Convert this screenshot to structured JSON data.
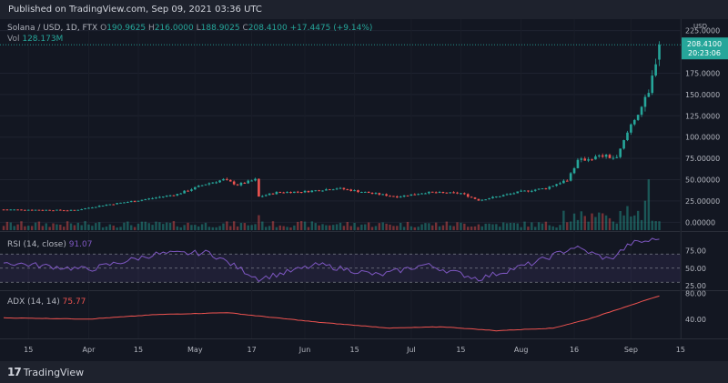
{
  "header": {
    "published": "Published on TradingView.com, Sep 09, 2021 03:36 UTC"
  },
  "footer": {
    "brand": "TradingView",
    "mark": "17"
  },
  "legend": {
    "symbol": "Solana / USD, 1D, FTX",
    "o_label": "O",
    "o": "190.9625",
    "h_label": "H",
    "h": "216.0000",
    "l_label": "L",
    "l": "188.9025",
    "c_label": "C",
    "c": "208.4100",
    "change": "+17.4475 (+9.14%)",
    "vol_label": "Vol",
    "vol": "128.173M"
  },
  "price_axis": {
    "currency": "USD",
    "ticks": [
      "225.0000",
      "175.0000",
      "150.0000",
      "125.0000",
      "100.0000",
      "75.00000",
      "50.00000",
      "25.00000",
      "0.00000"
    ],
    "last_price": "208.4100",
    "countdown": "20:23:06"
  },
  "rsi_pane": {
    "label": "RSI (14, close)",
    "value": "91.07",
    "ticks": [
      "75.00",
      "50.00",
      "25.00"
    ]
  },
  "adx_pane": {
    "label": "ADX (14, 14)",
    "value": "75.77",
    "ticks": [
      "80.00",
      "40.00"
    ]
  },
  "time_axis": [
    "15",
    "Apr",
    "15",
    "May",
    "17",
    "Jun",
    "15",
    "Jul",
    "15",
    "Aug",
    "16",
    "Sep",
    "15"
  ],
  "colors": {
    "up": "#26a69a",
    "down": "#ef5350",
    "rsi": "#7e57c2",
    "adx": "#ef5350",
    "bg": "#131722"
  },
  "chart_data": [
    {
      "type": "candlestick",
      "title": "Solana / USD, 1D, FTX",
      "x_range": [
        "2021-03-08",
        "2021-09-14"
      ],
      "ylim": [
        -5,
        230
      ],
      "anchors": [
        [
          "2021-03-08",
          15
        ],
        [
          "2021-03-28",
          14
        ],
        [
          "2021-04-05",
          20
        ],
        [
          "2021-04-14",
          25
        ],
        [
          "2021-04-26",
          33
        ],
        [
          "2021-05-04",
          45
        ],
        [
          "2021-05-09",
          50
        ],
        [
          "2021-05-13",
          44
        ],
        [
          "2021-05-18",
          50
        ],
        [
          "2021-05-19",
          30
        ],
        [
          "2021-05-24",
          35
        ],
        [
          "2021-06-01",
          36
        ],
        [
          "2021-06-10",
          40
        ],
        [
          "2021-06-20",
          34
        ],
        [
          "2021-06-27",
          30
        ],
        [
          "2021-07-05",
          35
        ],
        [
          "2021-07-15",
          34
        ],
        [
          "2021-07-20",
          26
        ],
        [
          "2021-07-25",
          30
        ],
        [
          "2021-08-01",
          36
        ],
        [
          "2021-08-08",
          40
        ],
        [
          "2021-08-14",
          50
        ],
        [
          "2021-08-17",
          72
        ],
        [
          "2021-08-24",
          78
        ],
        [
          "2021-08-28",
          75
        ],
        [
          "2021-09-01",
          115
        ],
        [
          "2021-09-06",
          150
        ],
        [
          "2021-09-08",
          190
        ],
        [
          "2021-09-09",
          208.41
        ]
      ],
      "volume_spikes": [
        [
          "2021-05-19",
          0.28
        ],
        [
          "2021-09-06",
          0.95
        ],
        [
          "2021-09-05",
          0.55
        ],
        [
          "2021-08-31",
          0.45
        ]
      ]
    },
    {
      "type": "line",
      "name": "RSI (14, close)",
      "ylim": [
        20,
        100
      ],
      "anchors": [
        [
          "2021-03-08",
          58
        ],
        [
          "2021-04-01",
          48
        ],
        [
          "2021-04-20",
          70
        ],
        [
          "2021-05-05",
          72
        ],
        [
          "2021-05-19",
          35
        ],
        [
          "2021-06-05",
          55
        ],
        [
          "2021-06-22",
          40
        ],
        [
          "2021-07-05",
          55
        ],
        [
          "2021-07-20",
          35
        ],
        [
          "2021-08-05",
          58
        ],
        [
          "2021-08-16",
          80
        ],
        [
          "2021-08-26",
          62
        ],
        [
          "2021-09-01",
          85
        ],
        [
          "2021-09-09",
          91.07
        ]
      ]
    },
    {
      "type": "line",
      "name": "ADX (14, 14)",
      "ylim": [
        10,
        82
      ],
      "anchors": [
        [
          "2021-03-08",
          42
        ],
        [
          "2021-04-01",
          40
        ],
        [
          "2021-04-20",
          47
        ],
        [
          "2021-05-10",
          50
        ],
        [
          "2021-06-05",
          35
        ],
        [
          "2021-06-25",
          26
        ],
        [
          "2021-07-10",
          28
        ],
        [
          "2021-07-25",
          22
        ],
        [
          "2021-08-10",
          26
        ],
        [
          "2021-08-20",
          40
        ],
        [
          "2021-09-01",
          62
        ],
        [
          "2021-09-09",
          75.77
        ]
      ]
    }
  ]
}
